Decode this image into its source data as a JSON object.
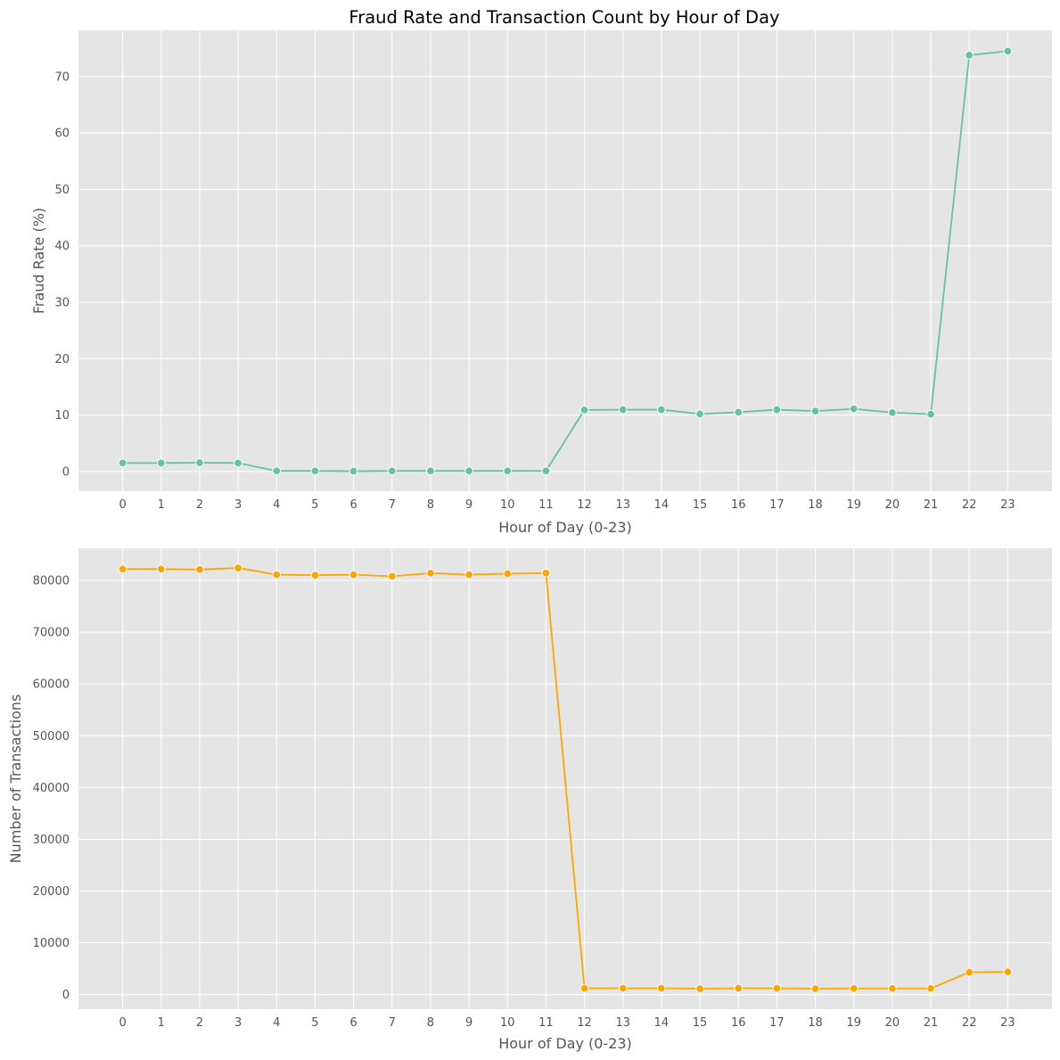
{
  "figure": {
    "title": "Fraud Rate and Transaction Count by Hour of Day"
  },
  "chart_data": [
    {
      "type": "line",
      "title": "Fraud Rate and Transaction Count by Hour of Day",
      "xlabel": "Hour of Day (0-23)",
      "ylabel": "Fraud Rate (%)",
      "x": [
        0,
        1,
        2,
        3,
        4,
        5,
        6,
        7,
        8,
        9,
        10,
        11,
        12,
        13,
        14,
        15,
        16,
        17,
        18,
        19,
        20,
        21,
        22,
        23
      ],
      "values": [
        1.5,
        1.5,
        1.55,
        1.5,
        0.1,
        0.1,
        0.05,
        0.1,
        0.1,
        0.1,
        0.1,
        0.1,
        10.9,
        10.95,
        10.95,
        10.2,
        10.5,
        10.95,
        10.7,
        11.1,
        10.45,
        10.15,
        73.8,
        74.5
      ],
      "ylim": [
        -3.5,
        78.2
      ],
      "yticks": [
        0,
        10,
        20,
        30,
        40,
        50,
        60,
        70
      ],
      "xlim": [
        -1.15,
        24.15
      ],
      "grid": true,
      "color": "#66c2a5",
      "background": "#e5e5e5"
    },
    {
      "type": "line",
      "xlabel": "Hour of Day (0-23)",
      "ylabel": "Number of Transactions",
      "x": [
        0,
        1,
        2,
        3,
        4,
        5,
        6,
        7,
        8,
        9,
        10,
        11,
        12,
        13,
        14,
        15,
        16,
        17,
        18,
        19,
        20,
        21,
        22,
        23
      ],
      "values": [
        82200,
        82200,
        82100,
        82400,
        81100,
        81000,
        81100,
        80800,
        81400,
        81100,
        81300,
        81400,
        1250,
        1250,
        1250,
        1150,
        1250,
        1250,
        1150,
        1200,
        1200,
        1200,
        4350,
        4400
      ],
      "ylim": [
        -2800,
        86200
      ],
      "yticks": [
        0,
        10000,
        20000,
        30000,
        40000,
        50000,
        60000,
        70000,
        80000
      ],
      "xlim": [
        -1.15,
        24.15
      ],
      "grid": true,
      "color": "#ffa500",
      "background": "#e5e5e5"
    }
  ]
}
